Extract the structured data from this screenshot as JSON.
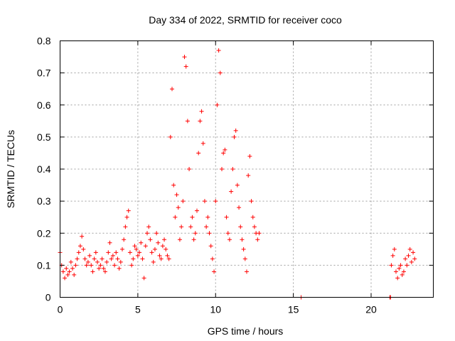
{
  "chart_data": {
    "type": "scatter",
    "title": "Day 334 of 2022, SRMTID for receiver coco",
    "xlabel": "GPS time / hours",
    "ylabel": "SRMTID / TECUs",
    "xlim": [
      0,
      24
    ],
    "ylim": [
      0,
      0.8
    ],
    "x_ticks": [
      0,
      5,
      10,
      15,
      20
    ],
    "x_tick_labels": [
      "0",
      "5",
      "10",
      "15",
      "20"
    ],
    "y_ticks": [
      0,
      0.1,
      0.2,
      0.3,
      0.4,
      0.5,
      0.6,
      0.7,
      0.8
    ],
    "y_tick_labels": [
      "0",
      "0.1",
      "0.2",
      "0.3",
      "0.4",
      "0.5",
      "0.6",
      "0.7",
      "0.8"
    ],
    "grid": true,
    "marker": "+",
    "color": "#ff0000",
    "series": [
      {
        "name": "SRMTID",
        "x": [
          0.0,
          0.1,
          0.2,
          0.3,
          0.4,
          0.5,
          0.6,
          0.7,
          0.8,
          0.9,
          1.0,
          1.1,
          1.2,
          1.3,
          1.4,
          1.5,
          1.6,
          1.7,
          1.8,
          1.9,
          2.0,
          2.1,
          2.2,
          2.3,
          2.4,
          2.5,
          2.6,
          2.7,
          2.8,
          2.9,
          3.0,
          3.1,
          3.2,
          3.3,
          3.4,
          3.5,
          3.6,
          3.7,
          3.8,
          3.9,
          4.0,
          4.1,
          4.2,
          4.3,
          4.4,
          4.5,
          4.6,
          4.7,
          4.8,
          4.9,
          5.0,
          5.1,
          5.2,
          5.3,
          5.4,
          5.5,
          5.6,
          5.7,
          5.8,
          5.9,
          6.0,
          6.1,
          6.2,
          6.3,
          6.4,
          6.5,
          6.6,
          6.7,
          6.8,
          6.9,
          7.0,
          7.1,
          7.2,
          7.3,
          7.4,
          7.5,
          7.6,
          7.7,
          7.8,
          7.9,
          8.0,
          8.1,
          8.2,
          8.3,
          8.4,
          8.5,
          8.6,
          8.7,
          8.8,
          8.9,
          9.0,
          9.1,
          9.2,
          9.3,
          9.4,
          9.5,
          9.6,
          9.7,
          9.8,
          9.9,
          10.0,
          10.1,
          10.2,
          10.3,
          10.4,
          10.5,
          10.6,
          10.7,
          10.8,
          10.9,
          11.0,
          11.1,
          11.2,
          11.3,
          11.4,
          11.5,
          11.6,
          11.7,
          11.8,
          11.9,
          12.0,
          12.1,
          12.2,
          12.3,
          12.4,
          12.5,
          12.6,
          12.7,
          12.8,
          15.5,
          21.2,
          21.25,
          21.3,
          21.4,
          21.5,
          21.6,
          21.7,
          21.8,
          21.9,
          22.0,
          22.1,
          22.2,
          22.3,
          22.4,
          22.5,
          22.6,
          22.7,
          22.8
        ],
        "y": [
          0.14,
          0.1,
          0.08,
          0.06,
          0.09,
          0.07,
          0.08,
          0.11,
          0.09,
          0.07,
          0.1,
          0.12,
          0.14,
          0.16,
          0.19,
          0.15,
          0.12,
          0.1,
          0.11,
          0.13,
          0.1,
          0.08,
          0.12,
          0.14,
          0.11,
          0.09,
          0.1,
          0.12,
          0.09,
          0.08,
          0.11,
          0.14,
          0.17,
          0.12,
          0.13,
          0.1,
          0.14,
          0.12,
          0.09,
          0.11,
          0.15,
          0.18,
          0.22,
          0.25,
          0.27,
          0.14,
          0.1,
          0.12,
          0.16,
          0.15,
          0.13,
          0.14,
          0.17,
          0.12,
          0.06,
          0.16,
          0.2,
          0.22,
          0.18,
          0.14,
          0.11,
          0.15,
          0.2,
          0.17,
          0.13,
          0.12,
          0.16,
          0.18,
          0.15,
          0.13,
          0.12,
          0.5,
          0.65,
          0.35,
          0.25,
          0.32,
          0.28,
          0.18,
          0.22,
          0.3,
          0.75,
          0.72,
          0.55,
          0.4,
          0.22,
          0.25,
          0.18,
          0.2,
          0.27,
          0.45,
          0.55,
          0.58,
          0.48,
          0.3,
          0.22,
          0.25,
          0.2,
          0.16,
          0.12,
          0.08,
          0.3,
          0.6,
          0.77,
          0.7,
          0.4,
          0.45,
          0.46,
          0.25,
          0.2,
          0.18,
          0.33,
          0.4,
          0.5,
          0.52,
          0.35,
          0.28,
          0.22,
          0.18,
          0.15,
          0.12,
          0.08,
          0.38,
          0.44,
          0.3,
          0.25,
          0.22,
          0.2,
          0.18,
          0.2,
          0.0,
          0.0,
          0.0,
          0.1,
          0.13,
          0.15,
          0.08,
          0.06,
          0.09,
          0.1,
          0.07,
          0.08,
          0.12,
          0.1,
          0.13,
          0.15,
          0.11,
          0.14,
          0.12
        ]
      }
    ]
  }
}
